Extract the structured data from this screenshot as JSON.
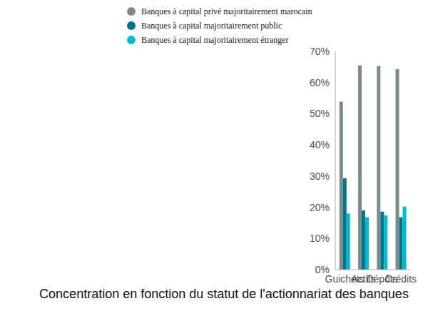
{
  "chart_data": {
    "type": "bar",
    "title": "Concentration en fonction du statut de l'actionnariat des banques",
    "categories": [
      "Guichets",
      "Actifs",
      "Dépôts",
      "Crédits"
    ],
    "series": [
      {
        "name": "Banques à capital privé majoritairement marocain",
        "color": "#7a8c8a",
        "values": [
          53.9,
          65.5,
          65.3,
          64.3
        ]
      },
      {
        "name": "Banques à capital majoritairement public",
        "color": "#00758f",
        "values": [
          29.3,
          19.0,
          18.6,
          16.8
        ]
      },
      {
        "name": "Banques à capital majoritairement étranger",
        "color": "#00bccc",
        "values": [
          18.0,
          16.8,
          17.4,
          20.2
        ]
      }
    ],
    "ylim": [
      0,
      70
    ],
    "yticks": [
      {
        "value": 0,
        "label": "0%"
      },
      {
        "value": 10,
        "label": "10%"
      },
      {
        "value": 20,
        "label": "20%"
      },
      {
        "value": 30,
        "label": "30%"
      },
      {
        "value": 40,
        "label": "40%"
      },
      {
        "value": 50,
        "label": "50%"
      },
      {
        "value": 60,
        "label": "60%"
      },
      {
        "value": 70,
        "label": "70%"
      }
    ],
    "grid": false,
    "legend": "top"
  }
}
